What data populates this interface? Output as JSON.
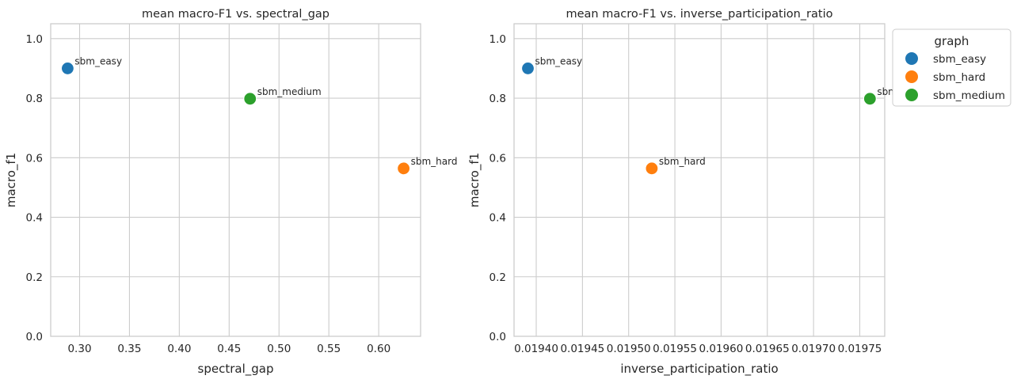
{
  "chart_data": [
    {
      "type": "scatter",
      "title": "mean macro-F1 vs. spectral_gap",
      "xlabel": "spectral_gap",
      "ylabel": "macro_f1",
      "xlim": [
        0.271,
        0.642
      ],
      "ylim": [
        0.0,
        1.05
      ],
      "xticks": [
        0.3,
        0.35,
        0.4,
        0.45,
        0.5,
        0.55,
        0.6
      ],
      "xtick_labels": [
        "0.30",
        "0.35",
        "0.40",
        "0.45",
        "0.50",
        "0.55",
        "0.60"
      ],
      "yticks": [
        0.0,
        0.2,
        0.4,
        0.6,
        0.8,
        1.0
      ],
      "ytick_labels": [
        "0.0",
        "0.2",
        "0.4",
        "0.6",
        "0.8",
        "1.0"
      ],
      "grid": true,
      "points": [
        {
          "label": "sbm_easy",
          "series": "sbm_easy",
          "x": 0.288,
          "y": 0.9
        },
        {
          "label": "sbm_medium",
          "series": "sbm_medium",
          "x": 0.471,
          "y": 0.798
        },
        {
          "label": "sbm_hard",
          "series": "sbm_hard",
          "x": 0.625,
          "y": 0.564
        }
      ]
    },
    {
      "type": "scatter",
      "title": "mean macro-F1 vs. inverse_participation_ratio",
      "xlabel": "inverse_participation_ratio",
      "ylabel": "macro_f1",
      "xlim": [
        0.019376,
        0.019777
      ],
      "ylim": [
        0.0,
        1.05
      ],
      "xticks": [
        0.0194,
        0.01945,
        0.0195,
        0.01955,
        0.0196,
        0.01965,
        0.0197,
        0.01975
      ],
      "xtick_labels": [
        "0.01940",
        "0.01945",
        "0.01950",
        "0.01955",
        "0.01960",
        "0.01965",
        "0.01970",
        "0.01975"
      ],
      "yticks": [
        0.0,
        0.2,
        0.4,
        0.6,
        0.8,
        1.0
      ],
      "ytick_labels": [
        "0.0",
        "0.2",
        "0.4",
        "0.6",
        "0.8",
        "1.0"
      ],
      "grid": true,
      "points": [
        {
          "label": "sbm_easy",
          "series": "sbm_easy",
          "x": 0.019391,
          "y": 0.9
        },
        {
          "label": "sbm_hard",
          "series": "sbm_hard",
          "x": 0.019525,
          "y": 0.564
        },
        {
          "label": "sbm_medium",
          "series": "sbm_medium",
          "x": 0.019761,
          "y": 0.798
        }
      ],
      "legend": {
        "title": "graph",
        "placement": "outside-upper-right",
        "entries": [
          "sbm_easy",
          "sbm_hard",
          "sbm_medium"
        ]
      }
    }
  ],
  "colors": {
    "sbm_easy": "#1f77b4",
    "sbm_hard": "#ff7f0e",
    "sbm_medium": "#2ca02c"
  }
}
